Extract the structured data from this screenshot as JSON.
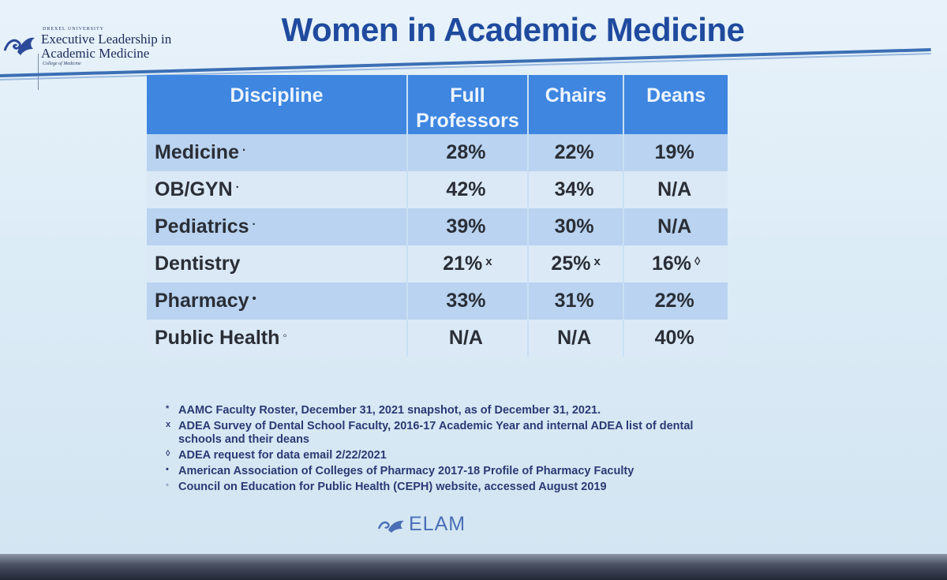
{
  "header": {
    "logo_small": "DREXEL UNIVERSITY",
    "logo_line1": "Executive Leadership in",
    "logo_line2": "Academic Medicine",
    "logo_sub": "College of Medicine",
    "title": "Women in Academic Medicine"
  },
  "table": {
    "columns": [
      "Discipline",
      "Full Professors",
      "Chairs",
      "Deans"
    ],
    "rows": [
      {
        "discipline": "Medicine",
        "dmark": "·",
        "full": "28%",
        "full_mark": "",
        "chairs": "22%",
        "chairs_mark": "",
        "deans": "19%",
        "deans_mark": ""
      },
      {
        "discipline": "OB/GYN",
        "dmark": "·",
        "full": "42%",
        "full_mark": "",
        "chairs": "34%",
        "chairs_mark": "",
        "deans": "N/A",
        "deans_mark": ""
      },
      {
        "discipline": "Pediatrics",
        "dmark": "·",
        "full": "39%",
        "full_mark": "",
        "chairs": "30%",
        "chairs_mark": "",
        "deans": "N/A",
        "deans_mark": ""
      },
      {
        "discipline": "Dentistry",
        "dmark": "",
        "full": "21%",
        "full_mark": "x",
        "chairs": "25%",
        "chairs_mark": "x",
        "deans": "16%",
        "deans_mark": "◊"
      },
      {
        "discipline": "Pharmacy",
        "dmark": "•",
        "full": "33%",
        "full_mark": "",
        "chairs": "31%",
        "chairs_mark": "",
        "deans": "22%",
        "deans_mark": ""
      },
      {
        "discipline": "Public Health",
        "dmark": "◦",
        "full": "N/A",
        "full_mark": "",
        "chairs": "N/A",
        "chairs_mark": "",
        "deans": "40%",
        "deans_mark": ""
      }
    ]
  },
  "footnotes": [
    {
      "symbol": "*",
      "text": "AAMC Faculty Roster, December 31, 2021 snapshot, as of December 31, 2021."
    },
    {
      "symbol": "x",
      "text": "ADEA Survey of Dental School Faculty, 2016-17 Academic Year and internal ADEA list of dental schools and their deans"
    },
    {
      "symbol": "◊",
      "text": "ADEA request for data email 2/22/2021"
    },
    {
      "symbol": "•",
      "text": "American Association of Colleges of Pharmacy 2017-18 Profile of Pharmacy Faculty"
    },
    {
      "symbol": "◦",
      "text": "Council on Education for Public Health (CEPH) website, accessed August 2019"
    }
  ],
  "footer": {
    "elam": "ELAM"
  },
  "colors": {
    "title": "#1f4a9e",
    "header_fill": "#3e86e0",
    "row_dark": "#b9d3f0",
    "row_light": "#dbe9f7"
  }
}
